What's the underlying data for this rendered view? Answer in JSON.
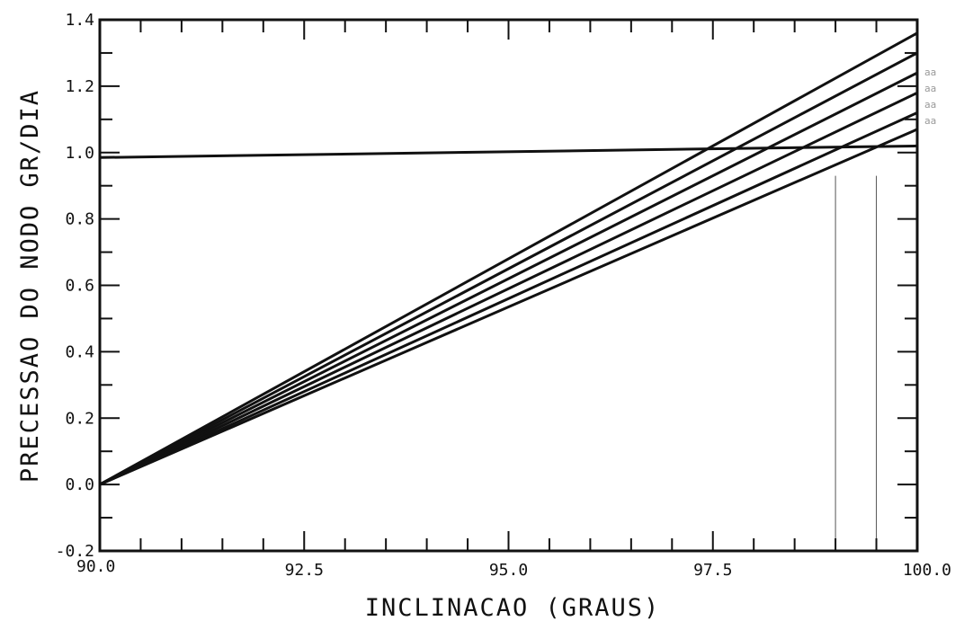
{
  "chart_data": {
    "type": "line",
    "title": "",
    "xlabel": "INCLINACAO   (GRAUS)",
    "ylabel": "PRECESSAO DO NODO GR/DIA",
    "xlim": [
      90.0,
      100.0
    ],
    "ylim": [
      -0.2,
      1.4
    ],
    "x_ticks": [
      90.0,
      92.5,
      95.0,
      97.5,
      100.0
    ],
    "x_tick_labels": [
      "90.0",
      "92.5",
      "95.0",
      "97.5",
      "100.0"
    ],
    "y_ticks": [
      -0.2,
      0.0,
      0.2,
      0.4,
      0.6,
      0.8,
      1.0,
      1.2,
      1.4
    ],
    "y_tick_labels": [
      "-0.2",
      "0.0",
      "0.2",
      "0.4",
      "0.6",
      "0.8",
      "1.0",
      "1.2",
      "1.4"
    ],
    "grid": false,
    "series": [
      {
        "x": [
          90.0,
          100.0
        ],
        "y": [
          0.0,
          1.36
        ]
      },
      {
        "x": [
          90.0,
          100.0
        ],
        "y": [
          0.0,
          1.3
        ]
      },
      {
        "x": [
          90.0,
          100.0
        ],
        "y": [
          0.0,
          1.24
        ]
      },
      {
        "x": [
          90.0,
          100.0
        ],
        "y": [
          0.0,
          1.18
        ]
      },
      {
        "x": [
          90.0,
          100.0
        ],
        "y": [
          0.0,
          1.12
        ]
      },
      {
        "x": [
          90.0,
          100.0
        ],
        "y": [
          0.0,
          1.07
        ]
      }
    ],
    "reference_line": {
      "x": [
        90.0,
        100.0
      ],
      "y": [
        0.985,
        1.02
      ]
    },
    "guide_lines_x": [
      99.0,
      99.5
    ],
    "side_labels": [
      "aa",
      "aa",
      "aa",
      "aa"
    ]
  }
}
